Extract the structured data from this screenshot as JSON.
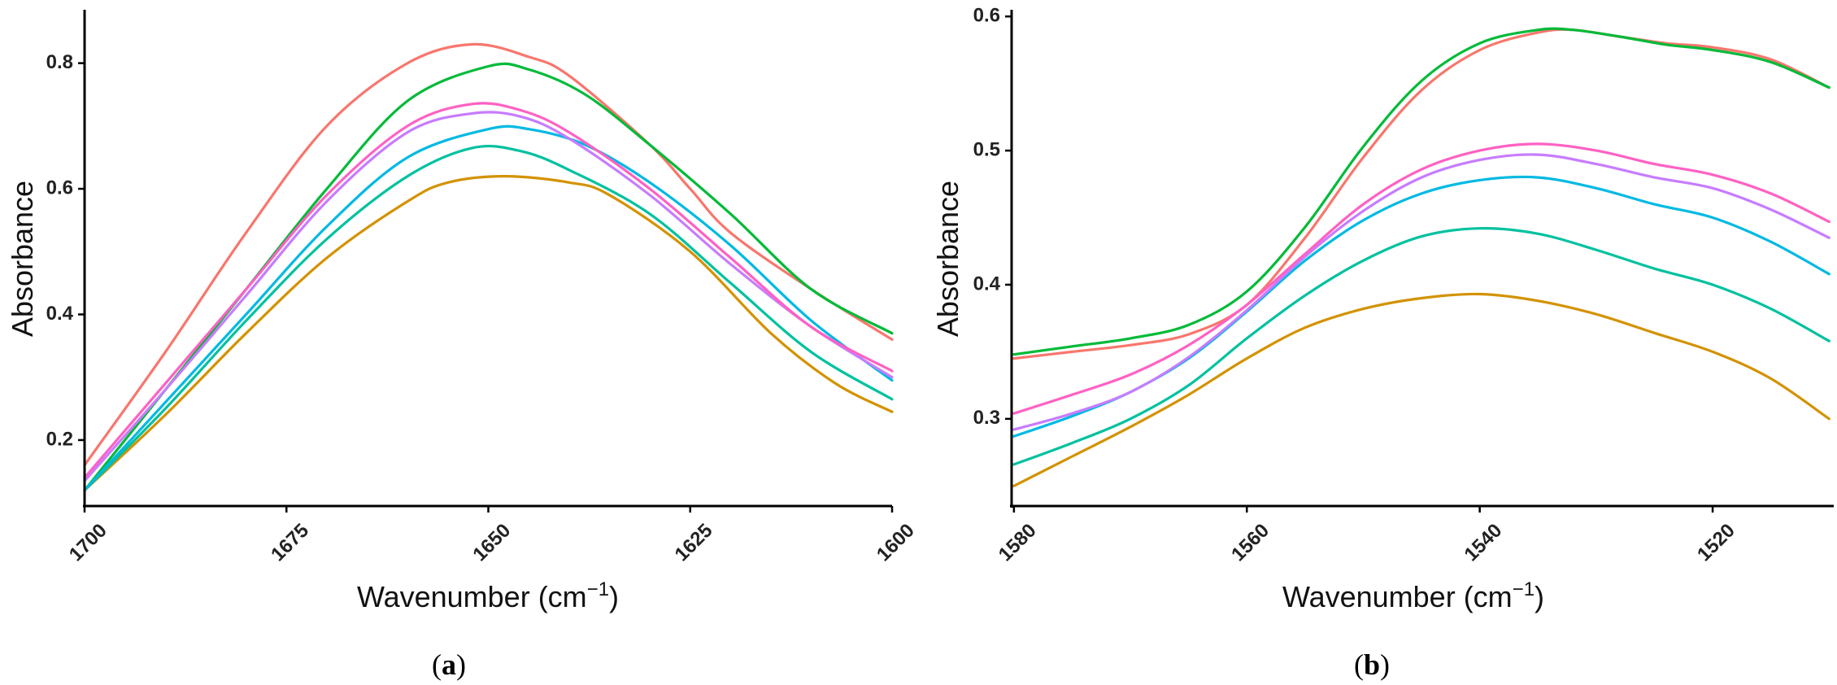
{
  "chart_data": [
    {
      "type": "line",
      "panel_label": "a",
      "caption": {
        "open": "(",
        "letter": "a",
        "close": ")"
      },
      "xlabel": "Wavenumber (cm",
      "xlabel_sup": "−1",
      "xlabel_close": ")",
      "ylabel": "Absorbance",
      "xlim": [
        1700,
        1600
      ],
      "ylim": [
        0.095,
        0.885
      ],
      "x_ticks": [
        1700,
        1675,
        1650,
        1625,
        1600
      ],
      "y_ticks": [
        0.2,
        0.4,
        0.6,
        0.8
      ],
      "x_tick_labels": [
        "1700",
        "1675",
        "1650",
        "1625",
        "1600"
      ],
      "y_tick_labels": [
        "0.2",
        "0.4",
        "0.6",
        "0.8"
      ],
      "grid": false,
      "series": [
        {
          "name": "red",
          "color": "#F8766D",
          "points": [
            [
              1700,
              0.16
            ],
            [
              1690,
              0.34
            ],
            [
              1680,
              0.53
            ],
            [
              1670,
              0.7
            ],
            [
              1660,
              0.8
            ],
            [
              1652,
              0.83
            ],
            [
              1645,
              0.81
            ],
            [
              1640,
              0.78
            ],
            [
              1630,
              0.67
            ],
            [
              1625,
              0.6
            ],
            [
              1620,
              0.53
            ],
            [
              1610,
              0.44
            ],
            [
              1600,
              0.36
            ]
          ]
        },
        {
          "name": "gold",
          "color": "#D39200",
          "points": [
            [
              1700,
              0.12
            ],
            [
              1690,
              0.24
            ],
            [
              1680,
              0.37
            ],
            [
              1670,
              0.49
            ],
            [
              1660,
              0.58
            ],
            [
              1655,
              0.61
            ],
            [
              1648,
              0.62
            ],
            [
              1640,
              0.61
            ],
            [
              1635,
              0.59
            ],
            [
              1625,
              0.5
            ],
            [
              1615,
              0.37
            ],
            [
              1607,
              0.29
            ],
            [
              1600,
              0.245
            ]
          ]
        },
        {
          "name": "green",
          "color": "#00BA38",
          "points": [
            [
              1700,
              0.12
            ],
            [
              1690,
              0.28
            ],
            [
              1680,
              0.44
            ],
            [
              1670,
              0.6
            ],
            [
              1660,
              0.74
            ],
            [
              1650,
              0.795
            ],
            [
              1645,
              0.79
            ],
            [
              1638,
              0.75
            ],
            [
              1630,
              0.67
            ],
            [
              1620,
              0.56
            ],
            [
              1610,
              0.44
            ],
            [
              1600,
              0.37
            ]
          ]
        },
        {
          "name": "teal",
          "color": "#00C19F",
          "points": [
            [
              1700,
              0.12
            ],
            [
              1690,
              0.25
            ],
            [
              1680,
              0.39
            ],
            [
              1670,
              0.52
            ],
            [
              1660,
              0.62
            ],
            [
              1652,
              0.665
            ],
            [
              1646,
              0.66
            ],
            [
              1640,
              0.63
            ],
            [
              1630,
              0.56
            ],
            [
              1620,
              0.45
            ],
            [
              1610,
              0.34
            ],
            [
              1600,
              0.265
            ]
          ]
        },
        {
          "name": "blue",
          "color": "#00B9E3",
          "points": [
            [
              1700,
              0.12
            ],
            [
              1690,
              0.26
            ],
            [
              1680,
              0.4
            ],
            [
              1670,
              0.54
            ],
            [
              1660,
              0.65
            ],
            [
              1650,
              0.695
            ],
            [
              1645,
              0.695
            ],
            [
              1638,
              0.67
            ],
            [
              1630,
              0.61
            ],
            [
              1620,
              0.51
            ],
            [
              1610,
              0.39
            ],
            [
              1600,
              0.295
            ]
          ]
        },
        {
          "name": "purple",
          "color": "#C77CFF",
          "points": [
            [
              1700,
              0.135
            ],
            [
              1690,
              0.28
            ],
            [
              1680,
              0.43
            ],
            [
              1670,
              0.58
            ],
            [
              1660,
              0.69
            ],
            [
              1652,
              0.72
            ],
            [
              1646,
              0.715
            ],
            [
              1640,
              0.68
            ],
            [
              1630,
              0.59
            ],
            [
              1620,
              0.48
            ],
            [
              1610,
              0.38
            ],
            [
              1600,
              0.3
            ]
          ]
        },
        {
          "name": "pink",
          "color": "#FF61C3",
          "points": [
            [
              1700,
              0.14
            ],
            [
              1690,
              0.29
            ],
            [
              1680,
              0.44
            ],
            [
              1670,
              0.59
            ],
            [
              1660,
              0.7
            ],
            [
              1652,
              0.735
            ],
            [
              1646,
              0.725
            ],
            [
              1640,
              0.69
            ],
            [
              1630,
              0.6
            ],
            [
              1620,
              0.49
            ],
            [
              1610,
              0.38
            ],
            [
              1600,
              0.31
            ]
          ]
        }
      ]
    },
    {
      "type": "line",
      "panel_label": "b",
      "caption": {
        "open": "(",
        "letter": "b",
        "close": ")"
      },
      "xlabel": "Wavenumber (cm",
      "xlabel_sup": "−1",
      "xlabel_close": ")",
      "ylabel": "Absorbance",
      "xlim": [
        1580.2,
        1509.6
      ],
      "ylim": [
        0.235,
        0.605
      ],
      "x_ticks": [
        1580,
        1560,
        1540,
        1520
      ],
      "y_ticks": [
        0.3,
        0.4,
        0.5,
        0.6
      ],
      "x_tick_labels": [
        "1580",
        "1560",
        "1540",
        "1520"
      ],
      "y_tick_labels": [
        "0.3",
        "0.4",
        "0.5",
        "0.6"
      ],
      "grid": false,
      "series": [
        {
          "name": "red",
          "color": "#F8766D",
          "points": [
            [
              1580,
              0.345
            ],
            [
              1575,
              0.35
            ],
            [
              1570,
              0.355
            ],
            [
              1565,
              0.363
            ],
            [
              1560,
              0.385
            ],
            [
              1555,
              0.435
            ],
            [
              1550,
              0.495
            ],
            [
              1545,
              0.545
            ],
            [
              1540,
              0.575
            ],
            [
              1535,
              0.588
            ],
            [
              1532,
              0.59
            ],
            [
              1528,
              0.585
            ],
            [
              1524,
              0.58
            ],
            [
              1520,
              0.577
            ],
            [
              1515,
              0.568
            ],
            [
              1510,
              0.547
            ]
          ]
        },
        {
          "name": "green",
          "color": "#00BA38",
          "points": [
            [
              1580,
              0.348
            ],
            [
              1575,
              0.354
            ],
            [
              1570,
              0.36
            ],
            [
              1565,
              0.37
            ],
            [
              1560,
              0.395
            ],
            [
              1555,
              0.443
            ],
            [
              1550,
              0.503
            ],
            [
              1545,
              0.552
            ],
            [
              1540,
              0.58
            ],
            [
              1535,
              0.59
            ],
            [
              1532,
              0.59
            ],
            [
              1528,
              0.585
            ],
            [
              1524,
              0.579
            ],
            [
              1520,
              0.575
            ],
            [
              1515,
              0.566
            ],
            [
              1510,
              0.547
            ]
          ]
        },
        {
          "name": "gold",
          "color": "#D39200",
          "points": [
            [
              1580,
              0.25
            ],
            [
              1575,
              0.272
            ],
            [
              1570,
              0.294
            ],
            [
              1565,
              0.318
            ],
            [
              1560,
              0.345
            ],
            [
              1555,
              0.368
            ],
            [
              1550,
              0.382
            ],
            [
              1545,
              0.39
            ],
            [
              1540,
              0.393
            ],
            [
              1535,
              0.388
            ],
            [
              1530,
              0.378
            ],
            [
              1525,
              0.364
            ],
            [
              1520,
              0.35
            ],
            [
              1515,
              0.33
            ],
            [
              1510,
              0.3
            ]
          ]
        },
        {
          "name": "teal",
          "color": "#00C19F",
          "points": [
            [
              1580,
              0.266
            ],
            [
              1575,
              0.282
            ],
            [
              1570,
              0.3
            ],
            [
              1565,
              0.325
            ],
            [
              1560,
              0.36
            ],
            [
              1555,
              0.392
            ],
            [
              1550,
              0.418
            ],
            [
              1545,
              0.436
            ],
            [
              1540,
              0.442
            ],
            [
              1535,
              0.438
            ],
            [
              1530,
              0.426
            ],
            [
              1525,
              0.412
            ],
            [
              1520,
              0.4
            ],
            [
              1515,
              0.382
            ],
            [
              1510,
              0.358
            ]
          ]
        },
        {
          "name": "blue",
          "color": "#00B9E3",
          "points": [
            [
              1580,
              0.287
            ],
            [
              1575,
              0.302
            ],
            [
              1570,
              0.32
            ],
            [
              1565,
              0.345
            ],
            [
              1560,
              0.38
            ],
            [
              1555,
              0.418
            ],
            [
              1550,
              0.448
            ],
            [
              1545,
              0.468
            ],
            [
              1540,
              0.478
            ],
            [
              1535,
              0.48
            ],
            [
              1530,
              0.472
            ],
            [
              1525,
              0.46
            ],
            [
              1520,
              0.45
            ],
            [
              1515,
              0.432
            ],
            [
              1510,
              0.408
            ]
          ]
        },
        {
          "name": "purple",
          "color": "#C77CFF",
          "points": [
            [
              1580,
              0.292
            ],
            [
              1575,
              0.304
            ],
            [
              1570,
              0.32
            ],
            [
              1565,
              0.346
            ],
            [
              1560,
              0.381
            ],
            [
              1555,
              0.421
            ],
            [
              1550,
              0.455
            ],
            [
              1545,
              0.48
            ],
            [
              1540,
              0.493
            ],
            [
              1535,
              0.497
            ],
            [
              1530,
              0.49
            ],
            [
              1525,
              0.48
            ],
            [
              1520,
              0.472
            ],
            [
              1515,
              0.456
            ],
            [
              1510,
              0.435
            ]
          ]
        },
        {
          "name": "pink",
          "color": "#FF61C3",
          "points": [
            [
              1580,
              0.304
            ],
            [
              1575,
              0.318
            ],
            [
              1570,
              0.333
            ],
            [
              1565,
              0.355
            ],
            [
              1560,
              0.385
            ],
            [
              1555,
              0.423
            ],
            [
              1550,
              0.46
            ],
            [
              1545,
              0.486
            ],
            [
              1540,
              0.5
            ],
            [
              1535,
              0.505
            ],
            [
              1530,
              0.5
            ],
            [
              1525,
              0.49
            ],
            [
              1520,
              0.482
            ],
            [
              1515,
              0.468
            ],
            [
              1510,
              0.447
            ]
          ]
        }
      ]
    }
  ]
}
